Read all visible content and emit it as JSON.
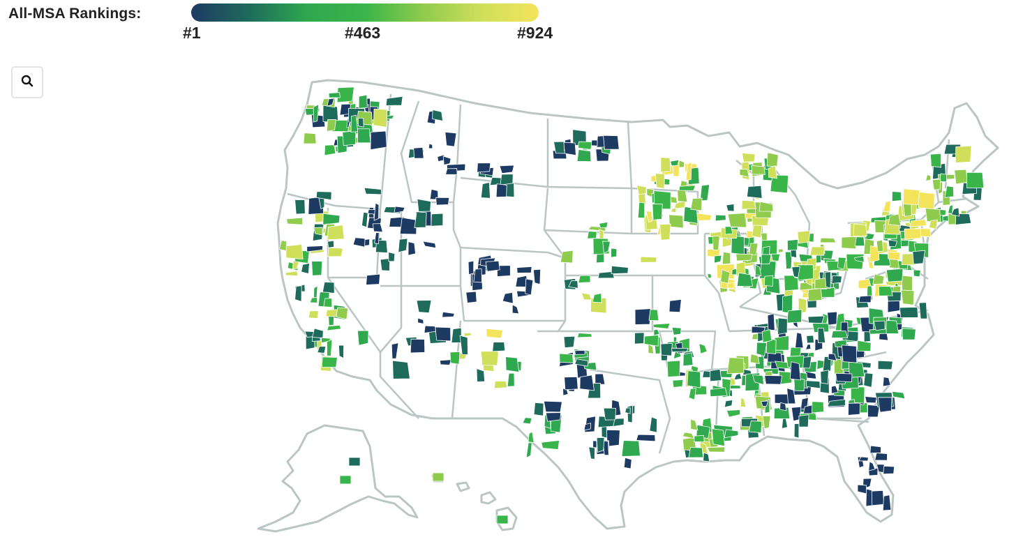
{
  "legend": {
    "title": "All-MSA Rankings:",
    "tick_labels": [
      "#1",
      "#463",
      "#924"
    ],
    "gradient_colors": [
      "#1d3a63",
      "#1e6b5c",
      "#2fa84f",
      "#39b54a",
      "#8fcb4d",
      "#cfdf5a",
      "#f4e45c"
    ]
  },
  "search_button": {
    "icon": "search-icon"
  },
  "map": {
    "region": "United States",
    "rank_min": 1,
    "rank_max": 924,
    "border_color": "#b9c6c4"
  }
}
